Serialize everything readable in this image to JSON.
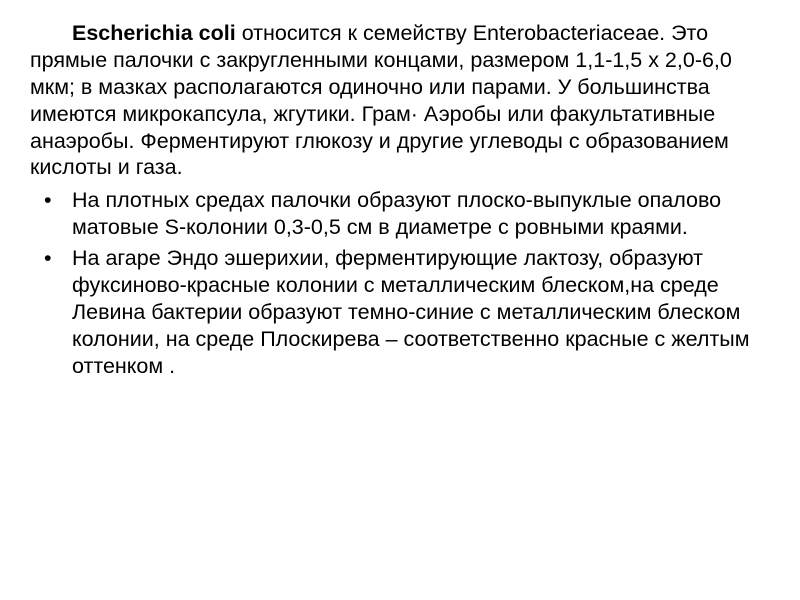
{
  "document": {
    "intro_bold": "Escherichia coli",
    "intro_rest": " относится к семейству Enterobacteriaceae. Это прямые палочки с закругленными концами, размером 1,1-1,5 х 2,0-6,0 мкм; в мазках располагаются одиночно или парами. У большинства имеются микрокапсула, жгутики. Грам· Аэробы или факультативные анаэробы. Ферментируют  глюкозу и другие углеводы с образованием кислоты и газа.",
    "bullets": [
      " На плотных средах палочки образуют плоско-выпуклые опалово матовые S-колонии 0,3-0,5 см в диаметре с ровными краями.",
      "На агаре Эндо эшерихии, ферментирующие лактозу, образуют фуксиново-красные колонии с металлическим блеском,на среде Левина бактерии образуют темно-синие с металлическим блеском колонии,  на среде Плоскирева – соответственно красные с желтым оттенком ."
    ],
    "styling": {
      "background_color": "#ffffff",
      "text_color": "#000000",
      "font_family": "Arial, Helvetica, sans-serif",
      "font_size_pt": 16,
      "line_height": 1.25,
      "bullet_char": "•"
    }
  }
}
